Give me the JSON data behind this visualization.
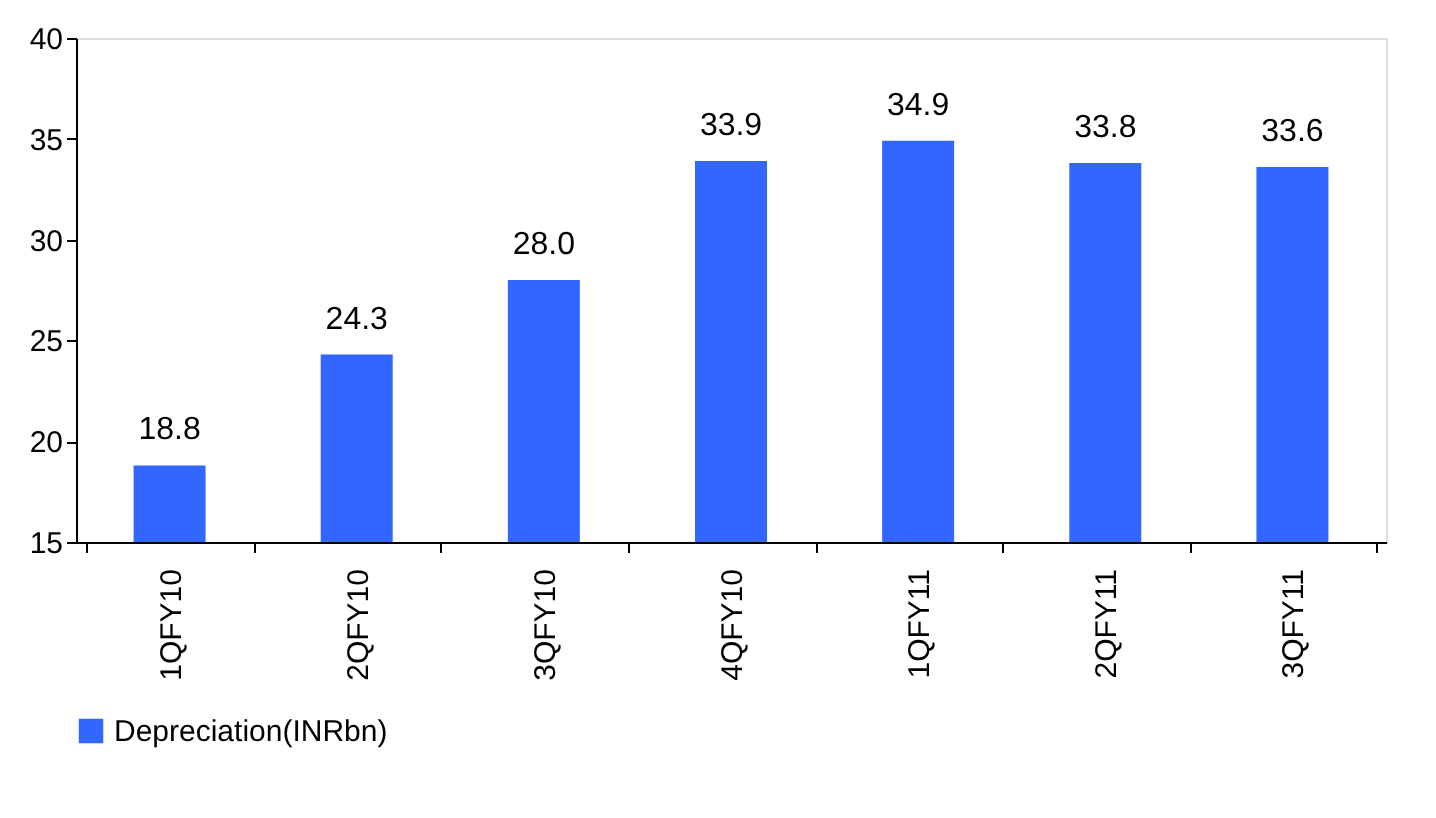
{
  "chart_data": {
    "type": "bar",
    "categories": [
      "1QFY10",
      "2QFY10",
      "3QFY10",
      "4QFY10",
      "1QFY11",
      "2QFY11",
      "3QFY11"
    ],
    "series": [
      {
        "name": "Depreciation(INRbn)",
        "color": "#3366ff",
        "values": [
          18.8,
          24.3,
          28.0,
          33.9,
          34.9,
          33.8,
          33.6
        ],
        "value_labels": [
          "18.8",
          "24.3",
          "28.0",
          "33.9",
          "34.9",
          "33.8",
          "33.6"
        ]
      }
    ],
    "ylim": [
      15,
      40
    ],
    "yticks": [
      15,
      20,
      25,
      30,
      35,
      40
    ],
    "grid": false,
    "legend": "bottom"
  }
}
